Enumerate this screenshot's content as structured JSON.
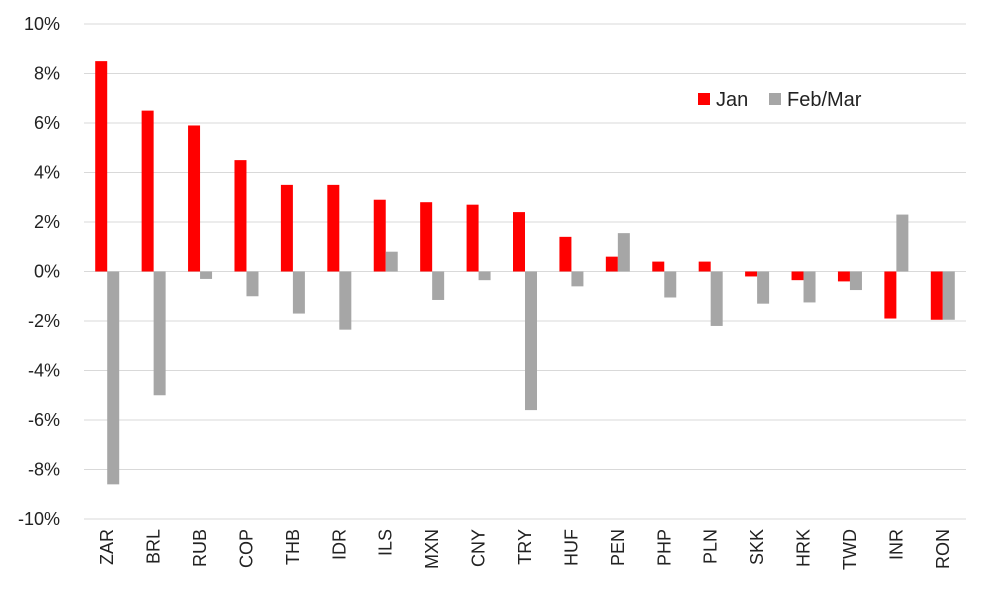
{
  "chart_data": {
    "type": "bar",
    "categories": [
      "ZAR",
      "BRL",
      "RUB",
      "COP",
      "THB",
      "IDR",
      "ILS",
      "MXN",
      "CNY",
      "TRY",
      "HUF",
      "PEN",
      "PHP",
      "PLN",
      "SKK",
      "HRK",
      "TWD",
      "INR",
      "RON"
    ],
    "series": [
      {
        "name": "Jan",
        "color": "#ff0000",
        "values": [
          8.5,
          6.5,
          5.9,
          4.5,
          3.5,
          3.5,
          2.9,
          2.8,
          2.7,
          2.4,
          1.4,
          0.6,
          0.4,
          0.4,
          -0.2,
          -0.35,
          -0.4,
          -1.9,
          -1.95
        ]
      },
      {
        "name": "Feb/Mar",
        "color": "#a6a6a6",
        "values": [
          -8.6,
          -5.0,
          -0.3,
          -1.0,
          -1.7,
          -2.35,
          0.8,
          -1.15,
          -0.35,
          -5.6,
          -0.6,
          1.55,
          -1.05,
          -2.2,
          -1.3,
          -1.25,
          -0.75,
          2.3,
          -1.95
        ]
      }
    ],
    "ylim": [
      -10,
      10
    ],
    "yticks": [
      "10%",
      "8%",
      "6%",
      "4%",
      "2%",
      "0%",
      "-2%",
      "-4%",
      "-6%",
      "-8%",
      "-10%"
    ],
    "ytick_values": [
      10,
      8,
      6,
      4,
      2,
      0,
      -2,
      -4,
      -6,
      -8,
      -10
    ],
    "y_unit": "%",
    "grid": true,
    "legend_position": "top-right"
  }
}
